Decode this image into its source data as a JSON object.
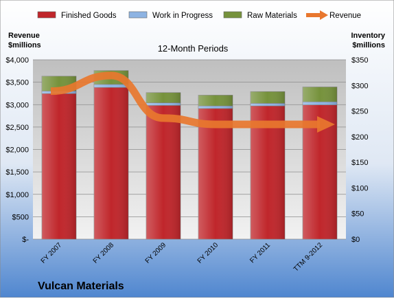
{
  "chart_data": {
    "type": "bar",
    "stacked": true,
    "title": "12-Month Periods",
    "company": "Vulcan Materials",
    "left_axis": {
      "label_line1": "Revenue",
      "label_line2": "$millions",
      "range": [
        0,
        4000
      ],
      "ticks": [
        "$-",
        "$500",
        "$1,000",
        "$1,500",
        "$2,000",
        "$2,500",
        "$3,000",
        "$3,500",
        "$4,000"
      ]
    },
    "right_axis": {
      "label_line1": "Inventory",
      "label_line2": "$millions",
      "range": [
        0,
        350
      ],
      "ticks": [
        "$0",
        "$50",
        "$100",
        "$150",
        "$200",
        "$250",
        "$300",
        "$350"
      ]
    },
    "categories": [
      "FY 2007",
      "FY 2008",
      "FY 2009",
      "FY 2010",
      "FY 2011",
      "TTM 9-2012"
    ],
    "series": [
      {
        "name": "Finished Goods",
        "color": "#c0262b",
        "values": [
          284,
          296,
          261,
          255,
          260,
          262
        ]
      },
      {
        "name": "Work in Progress",
        "color": "#8db3e2",
        "values": [
          5,
          6,
          5,
          5,
          5,
          6
        ]
      },
      {
        "name": "Raw Materials",
        "color": "#76923c",
        "values": [
          29,
          27,
          20,
          21,
          23,
          29
        ]
      }
    ],
    "line_series": {
      "name": "Revenue",
      "color": "#e8772e",
      "values": [
        3300,
        3650,
        2700,
        2560,
        2560,
        2560
      ]
    },
    "legend_position": "top",
    "grid": true
  }
}
